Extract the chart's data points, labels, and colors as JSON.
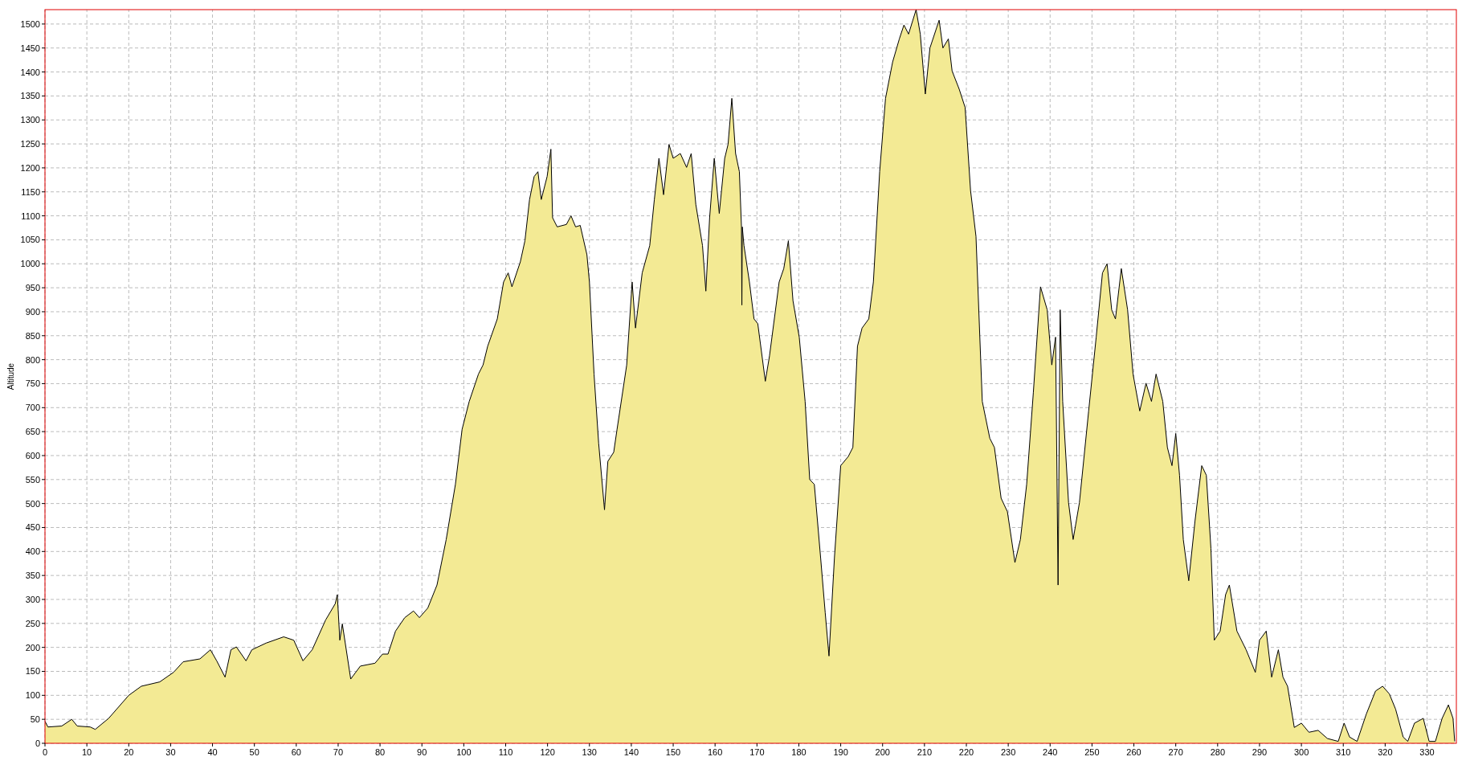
{
  "chart_data": {
    "type": "area",
    "ylabel": "Altitude",
    "xlim": [
      0,
      337
    ],
    "ylim": [
      0,
      1530
    ],
    "xticks": [
      0,
      10,
      20,
      30,
      40,
      50,
      60,
      70,
      80,
      90,
      100,
      110,
      120,
      130,
      140,
      150,
      160,
      170,
      180,
      190,
      200,
      210,
      220,
      230,
      240,
      250,
      260,
      270,
      280,
      290,
      300,
      310,
      320,
      330
    ],
    "yticks": [
      0,
      50,
      100,
      150,
      200,
      250,
      300,
      350,
      400,
      450,
      500,
      550,
      600,
      650,
      700,
      750,
      800,
      850,
      900,
      950,
      1000,
      1050,
      1100,
      1150,
      1200,
      1250,
      1300,
      1350,
      1400,
      1450,
      1500
    ],
    "grid": true,
    "series": [
      {
        "color": "#f3ea94",
        "x": [
          0,
          0.7,
          4,
          6.4,
          7.7,
          10.8,
          12,
          15.2,
          20,
          23,
          27.4,
          30.7,
          33,
          37,
          39.5,
          41,
          43,
          44.4,
          45.7,
          48,
          49.4,
          52.8,
          57,
          59.4,
          61.6,
          63.8,
          67,
          69.3,
          69.8,
          70.4,
          71,
          73,
          75.3,
          78.8,
          80.6,
          81.9,
          83.7,
          85.9,
          88,
          89.4,
          91.4,
          93.6,
          95.8,
          98,
          99.6,
          101.3,
          103.5,
          104.6,
          105.7,
          108,
          109.5,
          110.6,
          111.5,
          113.5,
          114.6,
          115.7,
          116.8,
          117.7,
          118.5,
          119.9,
          120.8,
          121.2,
          122.3,
          124.5,
          125.6,
          126.7,
          127.8,
          129.4,
          130,
          131.1,
          132.2,
          133.6,
          134.4,
          135.8,
          136.6,
          138.9,
          140.2,
          141,
          142.6,
          144.4,
          145.5,
          146.6,
          147.7,
          149,
          150,
          151.7,
          153.2,
          154.3,
          155.4,
          157,
          157.8,
          158.7,
          159.8,
          161,
          162.3,
          163.1,
          164,
          164.9,
          165.8,
          166.3,
          166.4,
          166.5,
          166.9,
          168.2,
          169.3,
          170.2,
          172,
          173,
          175.3,
          176.4,
          177.5,
          178.6,
          180.1,
          181.5,
          182.6,
          183.7,
          185.2,
          186.3,
          187.2,
          188.5,
          190,
          191.8,
          192.9,
          194,
          195.1,
          196.7,
          197.8,
          199.3,
          200.7,
          202.4,
          204,
          205.1,
          206.2,
          208,
          209,
          210.2,
          211.3,
          213.5,
          214.4,
          215.7,
          216.6,
          218.3,
          219.7,
          221,
          222.3,
          223.8,
          225.6,
          226.7,
          228.3,
          229.8,
          231.6,
          232.9,
          234.4,
          236,
          237.7,
          239.3,
          240.4,
          241.3,
          241.9,
          242.4,
          243,
          244.4,
          245.5,
          247,
          249.2,
          251,
          252.5,
          253.6,
          254.7,
          255.6,
          257,
          258.5,
          259.8,
          261.4,
          262.9,
          264.2,
          265.3,
          266.9,
          268,
          269.1,
          270,
          270.9,
          271.8,
          273.1,
          274.6,
          276.2,
          277.3,
          278.4,
          279.2,
          280.6,
          281.9,
          282.8,
          284.6,
          286.8,
          289,
          290,
          291.6,
          292.9,
          294.5,
          295.6,
          296.7,
          298.3,
          300,
          301.8,
          304,
          306.2,
          308.8,
          310.2,
          311.5,
          313.3,
          315.5,
          317.7,
          319.4,
          321,
          322.5,
          324.3,
          325.4,
          327,
          329.1,
          330.5,
          332,
          333.6,
          335.1,
          336.2,
          336.6
        ],
        "values": [
          46,
          34,
          36,
          50,
          36,
          34,
          29,
          52,
          100,
          119,
          128,
          148,
          170,
          176,
          195,
          172,
          138,
          195,
          201,
          172,
          195,
          209,
          222,
          215,
          172,
          195,
          257,
          291,
          310,
          215,
          249,
          134,
          161,
          167,
          186,
          186,
          234,
          262,
          276,
          262,
          282,
          330,
          425,
          540,
          655,
          713,
          770,
          789,
          828,
          885,
          962,
          981,
          952,
          1004,
          1048,
          1134,
          1182,
          1192,
          1134,
          1182,
          1239,
          1096,
          1077,
          1082,
          1100,
          1077,
          1080,
          1019,
          962,
          770,
          626,
          487,
          588,
          607,
          655,
          789,
          962,
          866,
          981,
          1038,
          1134,
          1220,
          1144,
          1249,
          1220,
          1230,
          1201,
          1230,
          1124,
          1038,
          943,
          1096,
          1220,
          1105,
          1220,
          1249,
          1345,
          1230,
          1192,
          1077,
          914,
          1077,
          1038,
          962,
          885,
          875,
          755,
          808,
          962,
          990,
          1048,
          923,
          847,
          713,
          550,
          540,
          387,
          272,
          182,
          387,
          579,
          598,
          617,
          828,
          866,
          885,
          962,
          1192,
          1345,
          1421,
          1469,
          1498,
          1479,
          1530,
          1479,
          1354,
          1450,
          1508,
          1450,
          1469,
          1402,
          1364,
          1326,
          1153,
          1057,
          713,
          636,
          617,
          511,
          483,
          377,
          425,
          540,
          732,
          952,
          904,
          789,
          847,
          330,
          904,
          713,
          502,
          425,
          502,
          693,
          847,
          981,
          1000,
          904,
          885,
          990,
          904,
          770,
          693,
          751,
          713,
          770,
          713,
          617,
          579,
          646,
          559,
          425,
          339,
          464,
          579,
          559,
          406,
          215,
          234,
          310,
          330,
          234,
          195,
          148,
          215,
          234,
          138,
          195,
          138,
          119,
          33,
          42,
          23,
          27,
          10,
          4,
          42,
          13,
          4,
          61,
          109,
          119,
          103,
          71,
          13,
          4,
          42,
          52,
          4,
          4,
          52,
          80,
          52,
          4
        ]
      }
    ]
  }
}
